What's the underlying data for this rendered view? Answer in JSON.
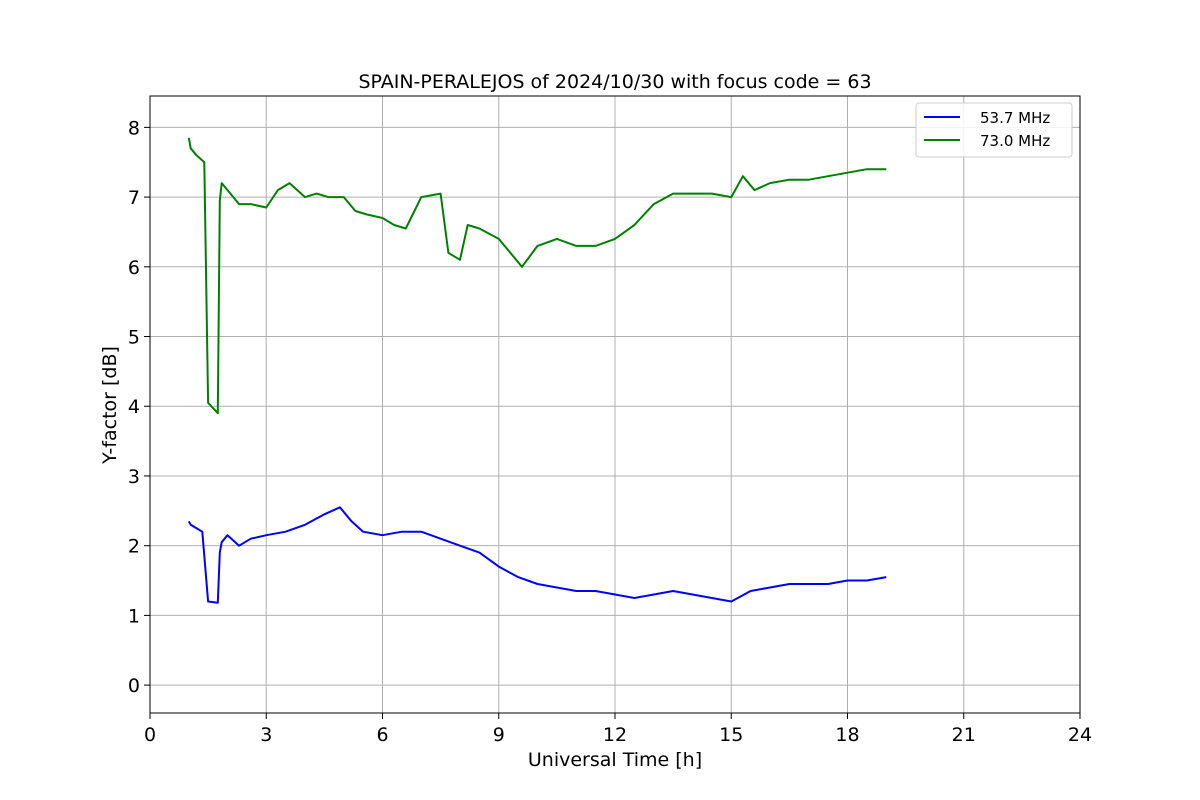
{
  "chart_data": {
    "type": "line",
    "title": "SPAIN-PERALEJOS of 2024/10/30 with focus code = 63",
    "xlabel": "Universal Time [h]",
    "ylabel": "Y-factor [dB]",
    "xlim": [
      0,
      24
    ],
    "ylim": [
      -0.4,
      8.45
    ],
    "xticks": [
      0,
      3,
      6,
      9,
      12,
      15,
      18,
      21,
      24
    ],
    "yticks": [
      0,
      1,
      2,
      3,
      4,
      5,
      6,
      7,
      8
    ],
    "grid": true,
    "legend_position": "top-right",
    "series": [
      {
        "name": "53.7 MHz",
        "color": "#0000ff",
        "x": [
          1.0,
          1.05,
          1.2,
          1.35,
          1.5,
          1.75,
          1.8,
          1.85,
          2.0,
          2.3,
          2.6,
          3.0,
          3.5,
          4.0,
          4.5,
          4.9,
          5.2,
          5.5,
          6.0,
          6.5,
          7.0,
          7.5,
          8.0,
          8.5,
          9.0,
          9.5,
          10.0,
          10.5,
          11.0,
          11.5,
          12.0,
          12.5,
          13.0,
          13.5,
          14.0,
          14.5,
          15.0,
          15.5,
          16.0,
          16.5,
          17.0,
          17.5,
          18.0,
          18.5,
          19.0
        ],
        "y": [
          2.35,
          2.3,
          2.25,
          2.2,
          1.2,
          1.18,
          1.9,
          2.05,
          2.15,
          2.0,
          2.1,
          2.15,
          2.2,
          2.3,
          2.45,
          2.55,
          2.35,
          2.2,
          2.15,
          2.2,
          2.2,
          2.1,
          2.0,
          1.9,
          1.7,
          1.55,
          1.45,
          1.4,
          1.35,
          1.35,
          1.3,
          1.25,
          1.3,
          1.35,
          1.3,
          1.25,
          1.2,
          1.35,
          1.4,
          1.45,
          1.45,
          1.45,
          1.5,
          1.5,
          1.55
        ]
      },
      {
        "name": "73.0 MHz",
        "color": "#008000",
        "x": [
          1.0,
          1.05,
          1.2,
          1.4,
          1.5,
          1.75,
          1.8,
          1.85,
          2.0,
          2.3,
          2.6,
          3.0,
          3.3,
          3.6,
          4.0,
          4.3,
          4.6,
          5.0,
          5.3,
          5.6,
          6.0,
          6.3,
          6.6,
          7.0,
          7.5,
          7.7,
          8.0,
          8.2,
          8.5,
          9.0,
          9.3,
          9.6,
          10.0,
          10.5,
          11.0,
          11.5,
          12.0,
          12.5,
          13.0,
          13.5,
          14.0,
          14.5,
          15.0,
          15.3,
          15.6,
          16.0,
          16.5,
          17.0,
          17.5,
          18.0,
          18.5,
          19.0
        ],
        "y": [
          7.85,
          7.7,
          7.6,
          7.5,
          4.05,
          3.9,
          6.95,
          7.2,
          7.1,
          6.9,
          6.9,
          6.85,
          7.1,
          7.2,
          7.0,
          7.05,
          7.0,
          7.0,
          6.8,
          6.75,
          6.7,
          6.6,
          6.55,
          7.0,
          7.05,
          6.2,
          6.1,
          6.6,
          6.55,
          6.4,
          6.2,
          6.0,
          6.3,
          6.4,
          6.3,
          6.3,
          6.4,
          6.6,
          6.9,
          7.05,
          7.05,
          7.05,
          7.0,
          7.3,
          7.1,
          7.2,
          7.25,
          7.25,
          7.3,
          7.35,
          7.4,
          7.4
        ]
      }
    ]
  }
}
